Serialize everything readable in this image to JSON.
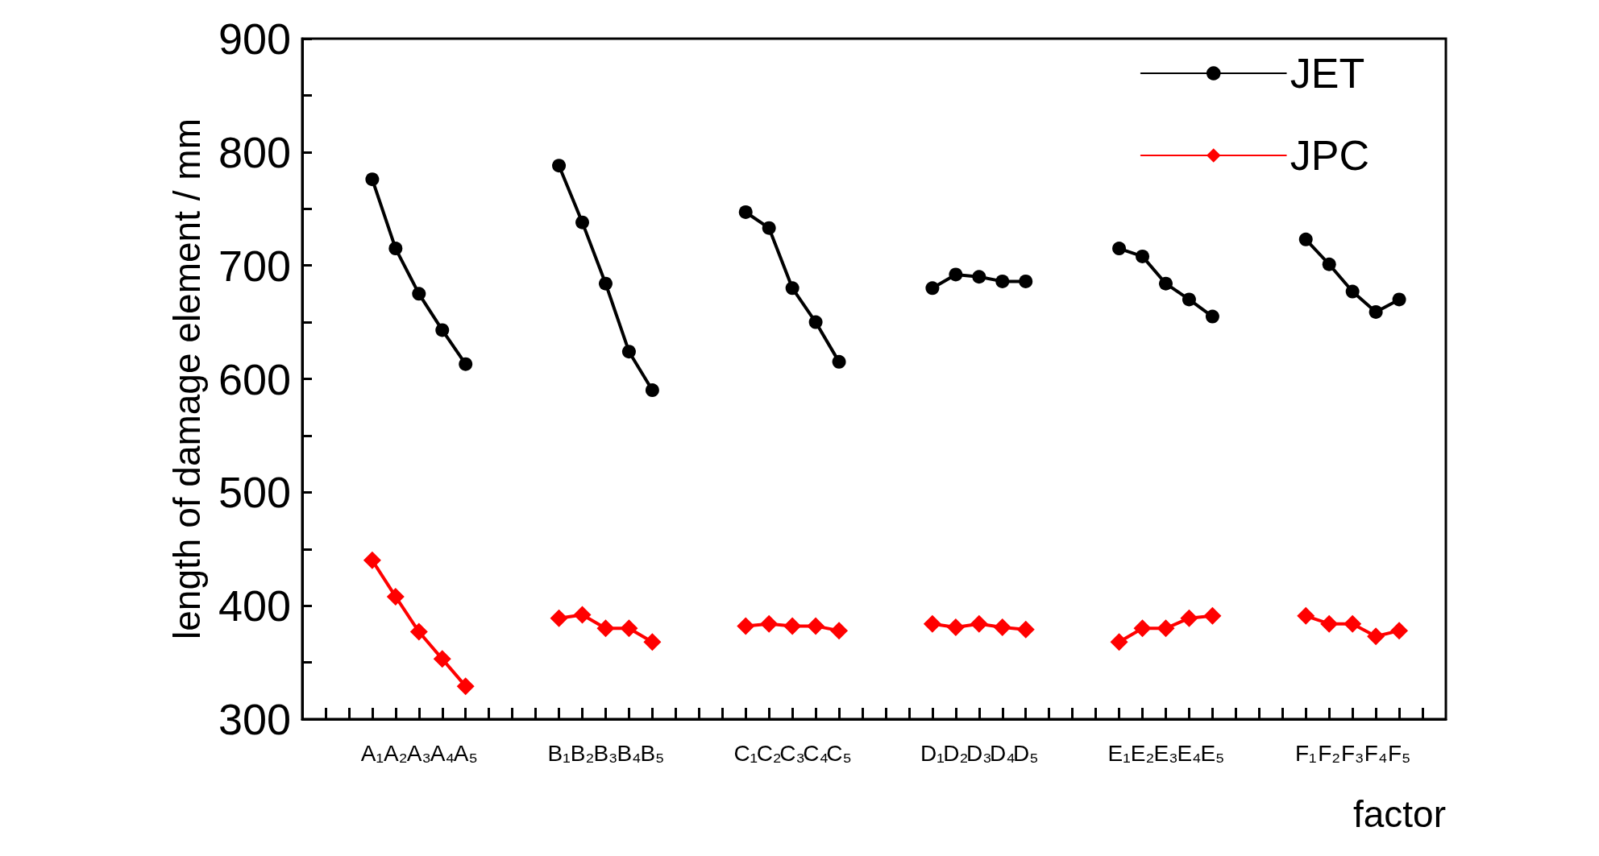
{
  "chart_data": {
    "type": "line",
    "xlabel": "factor",
    "ylabel": "length of damage element / mm",
    "categories": [
      null,
      null,
      null,
      "A₁",
      "A₂",
      "A₃",
      "A₄",
      "A₅",
      null,
      null,
      null,
      "B₁",
      "B₂",
      "B₃",
      "B₄",
      "B₅",
      null,
      null,
      null,
      "C₁",
      "C₂",
      "C₃",
      "C₄",
      "C₅",
      null,
      null,
      null,
      "D₁",
      "D₂",
      "D₃",
      "D₄",
      "D₅",
      null,
      null,
      null,
      "E₁",
      "E₂",
      "E₃",
      "E₄",
      "E₅",
      null,
      null,
      null,
      "F₁",
      "F₂",
      "F₃",
      "F₄",
      "F₅",
      null,
      null
    ],
    "series": [
      {
        "name": "JET",
        "color": "#000000",
        "marker": "circle",
        "values": [
          null,
          null,
          null,
          776,
          715,
          675,
          643,
          613,
          null,
          null,
          null,
          788,
          738,
          684,
          624,
          590,
          null,
          null,
          null,
          747,
          733,
          680,
          650,
          615,
          null,
          null,
          null,
          680,
          692,
          690,
          686,
          686,
          null,
          null,
          null,
          715,
          708,
          684,
          670,
          655,
          null,
          null,
          null,
          723,
          701,
          677,
          659,
          670,
          null,
          null
        ]
      },
      {
        "name": "JPC",
        "color": "#ff0000",
        "marker": "diamond",
        "values": [
          null,
          null,
          null,
          440,
          408,
          377,
          353,
          329,
          null,
          null,
          null,
          389,
          392,
          380,
          380,
          368,
          null,
          null,
          null,
          382,
          384,
          382,
          382,
          378,
          null,
          null,
          null,
          384,
          381,
          384,
          381,
          379,
          null,
          null,
          null,
          368,
          380,
          380,
          389,
          391,
          null,
          null,
          null,
          391,
          384,
          384,
          373,
          378,
          null,
          null
        ]
      }
    ],
    "ylim": [
      300,
      900
    ],
    "yticks": [
      300,
      {
        "value": 350,
        "label": null
      },
      400,
      {
        "value": 450,
        "label": null
      },
      500,
      {
        "value": 550,
        "label": null
      },
      600,
      {
        "value": 650,
        "label": null
      },
      700,
      {
        "value": 750,
        "label": null
      },
      800,
      {
        "value": 850,
        "label": null
      },
      900
    ],
    "grid": false,
    "legend": "top right",
    "line_style": "solid"
  }
}
